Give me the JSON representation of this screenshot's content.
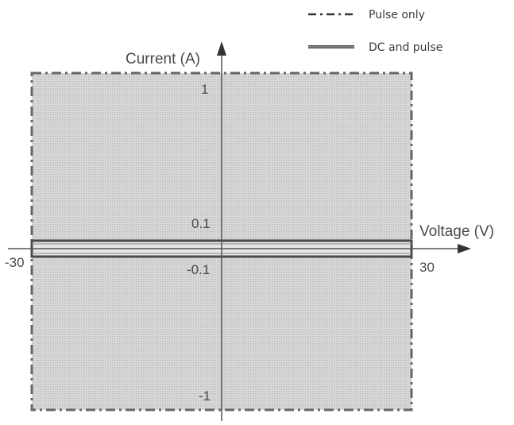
{
  "diagram": {
    "type": "operating-region",
    "x_axis": {
      "label": "Voltage (V)",
      "min_label": "-30",
      "max_label": "30",
      "range": [
        -30,
        30
      ]
    },
    "y_axis": {
      "label": "Current (A)",
      "ticks": [
        "1",
        "0.1",
        "-0.1",
        "-1"
      ]
    },
    "regions": [
      {
        "legend": "Pulse only",
        "v_range": [
          -30,
          30
        ],
        "i_range": [
          -1,
          1
        ],
        "line_style": "dash-dot"
      },
      {
        "legend": "DC and pulse",
        "v_range": [
          -30,
          30
        ],
        "i_range": [
          -0.1,
          0.1
        ],
        "line_style": "solid-double"
      }
    ],
    "colors": {
      "fill": "#cfcfcf",
      "line": "#555555"
    }
  }
}
